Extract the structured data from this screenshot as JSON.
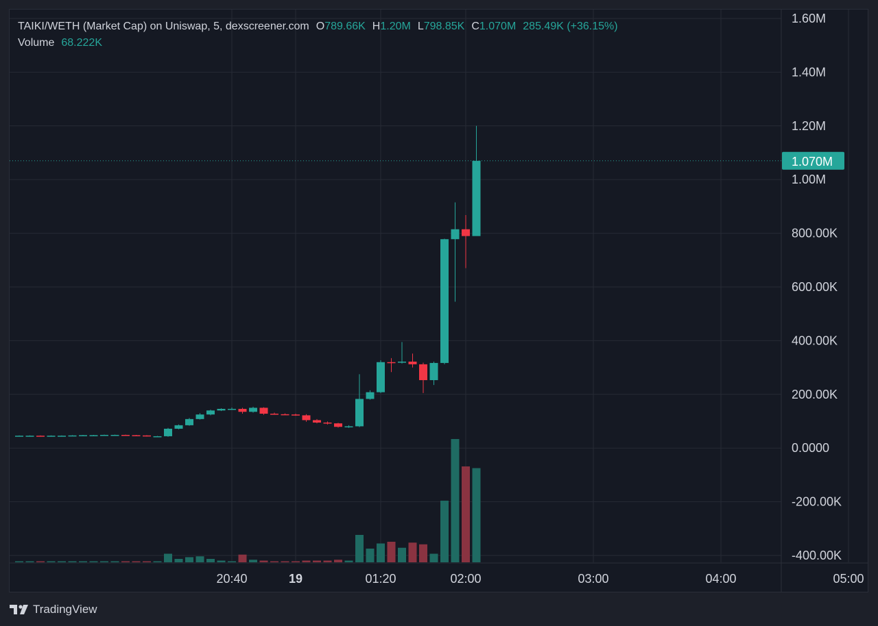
{
  "legend": {
    "symbol": "TAIKI/WETH (Market Cap) on Uniswap, 5, dexscreener.com",
    "o_label": "O",
    "o_value": "789.66K",
    "h_label": "H",
    "h_value": "1.20M",
    "l_label": "L",
    "l_value": "798.85K",
    "c_label": "C",
    "c_value": "1.070M",
    "change": "285.49K (+36.15%)",
    "volume_label": "Volume",
    "volume_value": "68.222K"
  },
  "footer": {
    "brand": "TradingView"
  },
  "colors": {
    "up": "#26a69a",
    "down": "#f23645",
    "up_volume": "#1f6b63",
    "down_volume": "#8a3341",
    "background": "#151923",
    "grid": "#262a35",
    "text": "#d1d4dc"
  },
  "chart_data": {
    "type": "candlestick",
    "price_axis": {
      "ticks": [
        {
          "value": 1600000,
          "label": "1.60M"
        },
        {
          "value": 1400000,
          "label": "1.40M"
        },
        {
          "value": 1200000,
          "label": "1.20M"
        },
        {
          "value": 1000000,
          "label": "1.00M"
        },
        {
          "value": 800000,
          "label": "800.00K"
        },
        {
          "value": 600000,
          "label": "600.00K"
        },
        {
          "value": 400000,
          "label": "400.00K"
        },
        {
          "value": 200000,
          "label": "200.00K"
        },
        {
          "value": 0,
          "label": "0.0000"
        },
        {
          "value": -200000,
          "label": "-200.00K"
        },
        {
          "value": -400000,
          "label": "-400.00K"
        }
      ],
      "range": [
        -400000,
        1600000
      ],
      "last_price": 1070000,
      "last_price_label": "1.070M"
    },
    "time_axis": {
      "ticks": [
        {
          "label": "20:40",
          "bold": false,
          "index": -10
        },
        {
          "label": "19",
          "bold": true,
          "index": -4
        },
        {
          "label": "01:20",
          "bold": false,
          "index": 4
        },
        {
          "label": "02:00",
          "bold": false,
          "index": 12
        },
        {
          "label": "03:00",
          "bold": false,
          "index": 24
        },
        {
          "label": "04:00",
          "bold": false,
          "index": 36
        },
        {
          "label": "05:00",
          "bold": false,
          "index": 48
        }
      ]
    },
    "candles": [
      {
        "t": -30,
        "o": 46000,
        "h": 47000,
        "l": 45000,
        "c": 46000,
        "v": 0.02
      },
      {
        "t": -29,
        "o": 46000,
        "h": 47000,
        "l": 45000,
        "c": 46000,
        "v": 0.02
      },
      {
        "t": -28,
        "o": 46000,
        "h": 47000,
        "l": 44000,
        "c": 45000,
        "v": 0.02
      },
      {
        "t": -27,
        "o": 45000,
        "h": 47000,
        "l": 44000,
        "c": 46000,
        "v": 0.02
      },
      {
        "t": -26,
        "o": 46000,
        "h": 47000,
        "l": 45000,
        "c": 46000,
        "v": 0.02
      },
      {
        "t": -25,
        "o": 46000,
        "h": 48000,
        "l": 45000,
        "c": 47000,
        "v": 0.02
      },
      {
        "t": -24,
        "o": 47000,
        "h": 49000,
        "l": 46000,
        "c": 48000,
        "v": 0.02
      },
      {
        "t": -23,
        "o": 48000,
        "h": 49000,
        "l": 47000,
        "c": 48000,
        "v": 0.02
      },
      {
        "t": -22,
        "o": 48000,
        "h": 50000,
        "l": 47000,
        "c": 49000,
        "v": 0.02
      },
      {
        "t": -21,
        "o": 49000,
        "h": 50000,
        "l": 48000,
        "c": 49000,
        "v": 0.02
      },
      {
        "t": -20,
        "o": 49000,
        "h": 50000,
        "l": 47000,
        "c": 48000,
        "v": 0.02
      },
      {
        "t": -19,
        "o": 48000,
        "h": 49000,
        "l": 46000,
        "c": 47000,
        "v": 0.02
      },
      {
        "t": -18,
        "o": 47000,
        "h": 48000,
        "l": 43000,
        "c": 44000,
        "v": 0.02
      },
      {
        "t": -17,
        "o": 44000,
        "h": 45000,
        "l": 43000,
        "c": 44000,
        "v": 0.02
      },
      {
        "t": -16,
        "o": 44000,
        "h": 75000,
        "l": 42000,
        "c": 72000,
        "v": 0.5
      },
      {
        "t": -15,
        "o": 72000,
        "h": 88000,
        "l": 70000,
        "c": 85000,
        "v": 0.2
      },
      {
        "t": -14,
        "o": 85000,
        "h": 112000,
        "l": 83000,
        "c": 108000,
        "v": 0.3
      },
      {
        "t": -13,
        "o": 108000,
        "h": 130000,
        "l": 106000,
        "c": 125000,
        "v": 0.35
      },
      {
        "t": -12,
        "o": 125000,
        "h": 143000,
        "l": 122000,
        "c": 140000,
        "v": 0.2
      },
      {
        "t": -11,
        "o": 140000,
        "h": 148000,
        "l": 138000,
        "c": 146000,
        "v": 0.1
      },
      {
        "t": -10,
        "o": 146000,
        "h": 151000,
        "l": 143000,
        "c": 146000,
        "v": 0.05
      },
      {
        "t": -9,
        "o": 146000,
        "h": 150000,
        "l": 128000,
        "c": 135000,
        "v": 0.45
      },
      {
        "t": -8,
        "o": 135000,
        "h": 154000,
        "l": 132000,
        "c": 150000,
        "v": 0.15
      },
      {
        "t": -7,
        "o": 150000,
        "h": 152000,
        "l": 124000,
        "c": 128000,
        "v": 0.1
      },
      {
        "t": -6,
        "o": 128000,
        "h": 132000,
        "l": 124000,
        "c": 126000,
        "v": 0.05
      },
      {
        "t": -5,
        "o": 126000,
        "h": 129000,
        "l": 123000,
        "c": 125000,
        "v": 0.05
      },
      {
        "t": -4,
        "o": 125000,
        "h": 128000,
        "l": 120000,
        "c": 122000,
        "v": 0.05
      },
      {
        "t": -3,
        "o": 122000,
        "h": 126000,
        "l": 98000,
        "c": 104000,
        "v": 0.1
      },
      {
        "t": -2,
        "o": 104000,
        "h": 108000,
        "l": 92000,
        "c": 95000,
        "v": 0.1
      },
      {
        "t": -1,
        "o": 95000,
        "h": 99000,
        "l": 88000,
        "c": 92000,
        "v": 0.1
      },
      {
        "t": 0,
        "o": 92000,
        "h": 94000,
        "l": 76000,
        "c": 79000,
        "v": 0.15
      },
      {
        "t": 1,
        "o": 79000,
        "h": 85000,
        "l": 75000,
        "c": 81000,
        "v": 0.1
      },
      {
        "t": 2,
        "o": 81000,
        "h": 275000,
        "l": 78000,
        "c": 183000,
        "v": 1.6
      },
      {
        "t": 3,
        "o": 183000,
        "h": 215000,
        "l": 180000,
        "c": 208000,
        "v": 0.8
      },
      {
        "t": 4,
        "o": 208000,
        "h": 327000,
        "l": 205000,
        "c": 320000,
        "v": 1.1
      },
      {
        "t": 5,
        "o": 320000,
        "h": 335000,
        "l": 283000,
        "c": 318000,
        "v": 1.2
      },
      {
        "t": 6,
        "o": 318000,
        "h": 395000,
        "l": 315000,
        "c": 322000,
        "v": 0.85
      },
      {
        "t": 7,
        "o": 322000,
        "h": 352000,
        "l": 300000,
        "c": 312000,
        "v": 1.15
      },
      {
        "t": 8,
        "o": 312000,
        "h": 318000,
        "l": 205000,
        "c": 253000,
        "v": 1.05
      },
      {
        "t": 9,
        "o": 253000,
        "h": 322000,
        "l": 235000,
        "c": 317000,
        "v": 0.5
      },
      {
        "t": 10,
        "o": 317000,
        "h": 780000,
        "l": 312000,
        "c": 778000,
        "v": 3.6
      },
      {
        "t": 11,
        "o": 778000,
        "h": 915000,
        "l": 545000,
        "c": 815000,
        "v": 7.2
      },
      {
        "t": 12,
        "o": 815000,
        "h": 868000,
        "l": 670000,
        "c": 789660,
        "v": 5.6
      },
      {
        "t": 13,
        "o": 789660,
        "h": 1200000,
        "l": 798850,
        "c": 1070000,
        "v": 5.5
      }
    ]
  }
}
